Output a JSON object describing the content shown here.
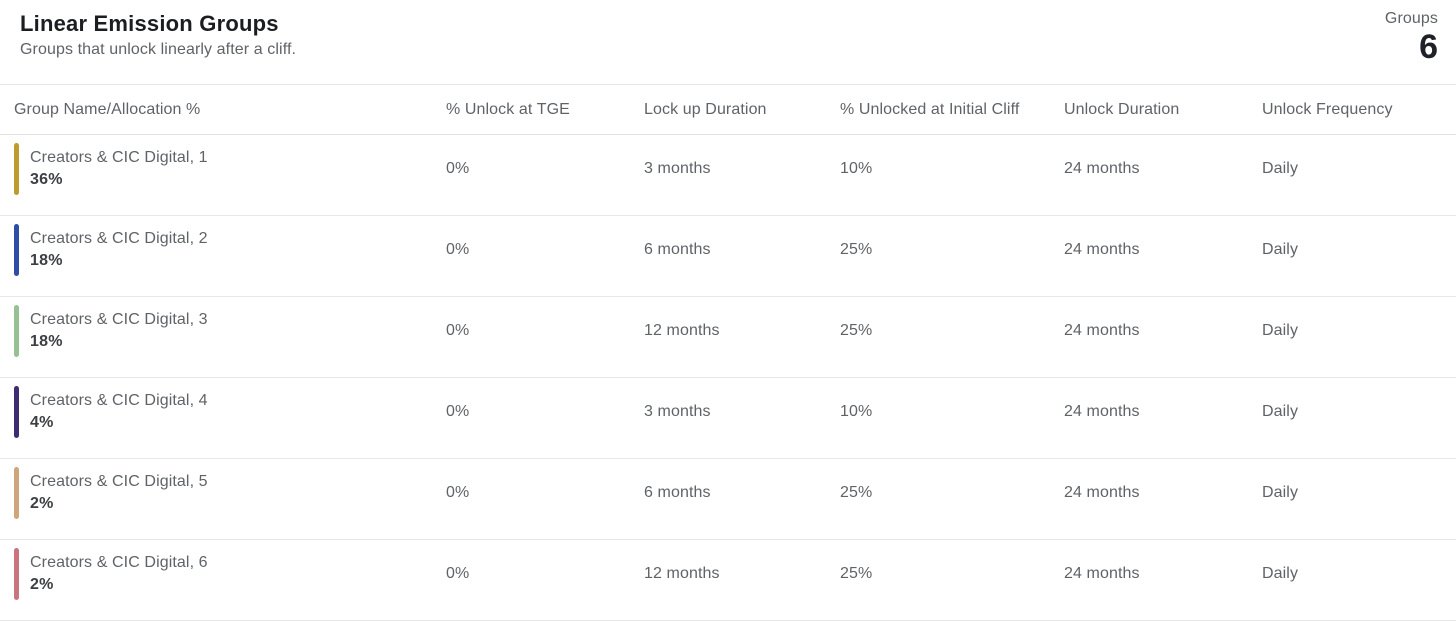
{
  "header": {
    "title": "Linear Emission Groups",
    "subtitle": "Groups that unlock linearly after a cliff.",
    "groups_label": "Groups",
    "groups_count": "6"
  },
  "table": {
    "columns": [
      "Group Name/Allocation %",
      "% Unlock at TGE",
      "Lock up Duration",
      "% Unlocked at Initial Cliff",
      "Unlock Duration",
      "Unlock Frequency"
    ],
    "rows": [
      {
        "name": "Creators & CIC Digital, 1",
        "allocation": "36%",
        "accent_color": "#be9b2f",
        "unlock_at_tge": "0%",
        "lockup_duration": "3 months",
        "unlocked_at_initial_cliff": "10%",
        "unlock_duration": "24 months",
        "unlock_frequency": "Daily"
      },
      {
        "name": "Creators & CIC Digital, 2",
        "allocation": "18%",
        "accent_color": "#2f4da6",
        "unlock_at_tge": "0%",
        "lockup_duration": "6 months",
        "unlocked_at_initial_cliff": "25%",
        "unlock_duration": "24 months",
        "unlock_frequency": "Daily"
      },
      {
        "name": "Creators & CIC Digital, 3",
        "allocation": "18%",
        "accent_color": "#97c193",
        "unlock_at_tge": "0%",
        "lockup_duration": "12 months",
        "unlocked_at_initial_cliff": "25%",
        "unlock_duration": "24 months",
        "unlock_frequency": "Daily"
      },
      {
        "name": "Creators & CIC Digital, 4",
        "allocation": "4%",
        "accent_color": "#3f2b71",
        "unlock_at_tge": "0%",
        "lockup_duration": "3 months",
        "unlocked_at_initial_cliff": "10%",
        "unlock_duration": "24 months",
        "unlock_frequency": "Daily"
      },
      {
        "name": "Creators & CIC Digital, 5",
        "allocation": "2%",
        "accent_color": "#cfa67b",
        "unlock_at_tge": "0%",
        "lockup_duration": "6 months",
        "unlocked_at_initial_cliff": "25%",
        "unlock_duration": "24 months",
        "unlock_frequency": "Daily"
      },
      {
        "name": "Creators & CIC Digital, 6",
        "allocation": "2%",
        "accent_color": "#c97580",
        "unlock_at_tge": "0%",
        "lockup_duration": "12 months",
        "unlocked_at_initial_cliff": "25%",
        "unlock_duration": "24 months",
        "unlock_frequency": "Daily"
      }
    ]
  }
}
